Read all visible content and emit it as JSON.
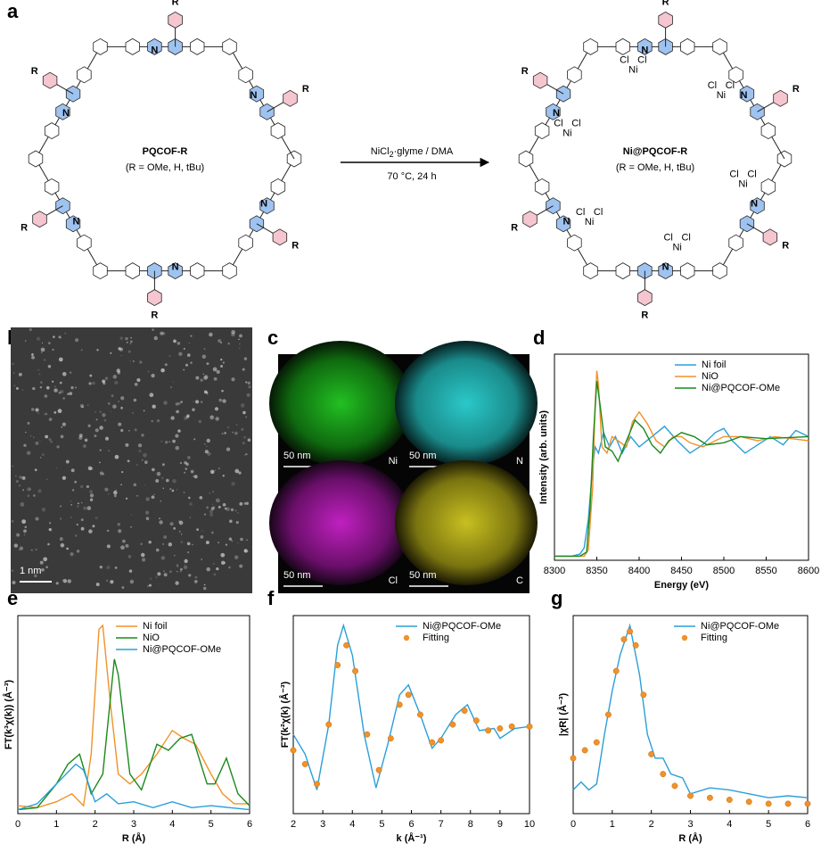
{
  "panel_labels": [
    "a",
    "b",
    "c",
    "d",
    "e",
    "f",
    "g"
  ],
  "scheme": {
    "left": {
      "name": "PQCOF-R",
      "subtitle": "(R = OMe, H, tBu)",
      "r_labels": [
        "R",
        "R",
        "R",
        "R",
        "R",
        "R"
      ],
      "n_labels": [
        "N",
        "N",
        "N",
        "N",
        "N",
        "N"
      ]
    },
    "arrow": {
      "reagent_main": "NiCl",
      "reagent_sub": "2",
      "reagent_rest": "·glyme / DMA",
      "conditions": "70 °C, 24 h"
    },
    "right": {
      "name": "Ni@PQCOF-R",
      "subtitle": "(R = OMe, H, tBu)",
      "r_labels": [
        "R",
        "R",
        "R",
        "R",
        "R",
        "R"
      ],
      "n_labels": [
        "N",
        "N",
        "N",
        "N",
        "N",
        "N"
      ],
      "ni_sites": [
        {
          "ni": "Ni",
          "cl": [
            "Cl",
            "Cl"
          ]
        },
        {
          "ni": "Ni",
          "cl": [
            "Cl",
            "Cl"
          ]
        },
        {
          "ni": "Ni",
          "cl": [
            "Cl",
            "Cl"
          ]
        },
        {
          "ni": "Ni",
          "cl": [
            "Cl",
            "Cl"
          ]
        },
        {
          "ni": "Ni",
          "cl": [
            "Cl",
            "Cl"
          ]
        },
        {
          "ni": "Ni",
          "cl": [
            "Cl",
            "Cl"
          ]
        }
      ]
    }
  },
  "images": {
    "b": {
      "scale": "1 nm"
    },
    "c": [
      {
        "element": "Ni",
        "scale": "50 nm"
      },
      {
        "element": "N",
        "scale": "50 nm"
      },
      {
        "element": "Cl",
        "scale": "50 nm"
      },
      {
        "element": "C",
        "scale": "50 nm"
      }
    ]
  },
  "chart_data": [
    {
      "type": "line",
      "xlabel": "Energy (eV)",
      "ylabel": "Intensity (arb. units)",
      "xlim": [
        8300,
        8600
      ],
      "xticks": [
        8300,
        8350,
        8400,
        8450,
        8500,
        8550,
        8600
      ],
      "ylim": [
        0,
        1
      ],
      "legend": "upper right",
      "series": [
        {
          "name": "Ni foil",
          "color": "#2a9fd8",
          "x": [
            8300,
            8320,
            8330,
            8335,
            8340,
            8345,
            8348,
            8352,
            8358,
            8365,
            8372,
            8380,
            8390,
            8400,
            8415,
            8430,
            8445,
            8460,
            8475,
            8490,
            8500,
            8510,
            8525,
            8540,
            8555,
            8570,
            8585,
            8600
          ],
          "values": [
            0.02,
            0.02,
            0.03,
            0.06,
            0.2,
            0.45,
            0.55,
            0.52,
            0.62,
            0.55,
            0.6,
            0.52,
            0.6,
            0.55,
            0.6,
            0.65,
            0.58,
            0.52,
            0.56,
            0.62,
            0.64,
            0.58,
            0.52,
            0.56,
            0.6,
            0.56,
            0.63,
            0.6
          ]
        },
        {
          "name": "NiO",
          "color": "#f0922a",
          "x": [
            8300,
            8335,
            8340,
            8345,
            8348,
            8350,
            8352,
            8356,
            8362,
            8368,
            8375,
            8385,
            8392,
            8400,
            8410,
            8420,
            8430,
            8440,
            8450,
            8460,
            8475,
            8490,
            8500,
            8520,
            8540,
            8560,
            8600
          ],
          "values": [
            0.02,
            0.02,
            0.05,
            0.35,
            0.75,
            0.92,
            0.85,
            0.55,
            0.52,
            0.6,
            0.58,
            0.55,
            0.67,
            0.72,
            0.66,
            0.58,
            0.55,
            0.6,
            0.6,
            0.57,
            0.55,
            0.58,
            0.6,
            0.6,
            0.58,
            0.6,
            0.58
          ]
        },
        {
          "name": "Ni@PQCOF-OMe",
          "color": "#1a8a1a",
          "x": [
            8300,
            8330,
            8338,
            8342,
            8346,
            8350,
            8354,
            8360,
            8368,
            8375,
            8385,
            8395,
            8405,
            8415,
            8425,
            8435,
            8450,
            8465,
            8480,
            8500,
            8520,
            8550,
            8600
          ],
          "values": [
            0.02,
            0.02,
            0.04,
            0.25,
            0.6,
            0.87,
            0.75,
            0.55,
            0.53,
            0.48,
            0.58,
            0.68,
            0.64,
            0.56,
            0.52,
            0.58,
            0.62,
            0.6,
            0.56,
            0.57,
            0.6,
            0.59,
            0.6
          ]
        }
      ]
    },
    {
      "type": "line",
      "xlabel": "R (Å)",
      "ylabel": "FT(k³χ(k)) (Å⁻³)",
      "xlim": [
        0,
        6
      ],
      "xticks": [
        0,
        1,
        2,
        3,
        4,
        5,
        6
      ],
      "ylim": [
        0,
        1
      ],
      "legend": "upper right",
      "series": [
        {
          "name": "Ni foil",
          "color": "#f0922a",
          "x": [
            0,
            0.5,
            1.0,
            1.4,
            1.7,
            1.9,
            2.1,
            2.2,
            2.4,
            2.6,
            2.9,
            3.2,
            3.6,
            4.0,
            4.3,
            4.6,
            5.0,
            5.3,
            5.6,
            6
          ],
          "values": [
            0.04,
            0.03,
            0.06,
            0.1,
            0.04,
            0.3,
            0.93,
            0.95,
            0.55,
            0.2,
            0.15,
            0.2,
            0.3,
            0.42,
            0.38,
            0.35,
            0.2,
            0.1,
            0.05,
            0.05
          ]
        },
        {
          "name": "NiO",
          "color": "#1a8a1a",
          "x": [
            0,
            0.5,
            1.0,
            1.3,
            1.6,
            1.9,
            2.2,
            2.5,
            2.6,
            2.9,
            3.2,
            3.6,
            3.9,
            4.2,
            4.5,
            4.9,
            5.1,
            5.4,
            5.7,
            6
          ],
          "values": [
            0.02,
            0.03,
            0.15,
            0.25,
            0.3,
            0.1,
            0.2,
            0.78,
            0.7,
            0.2,
            0.12,
            0.35,
            0.32,
            0.38,
            0.4,
            0.15,
            0.15,
            0.28,
            0.1,
            0.04
          ]
        },
        {
          "name": "Ni@PQCOF-OMe",
          "color": "#2a9fd8",
          "x": [
            0,
            0.5,
            1.0,
            1.5,
            1.7,
            2.0,
            2.3,
            2.6,
            3.0,
            3.5,
            4.0,
            4.5,
            5,
            6
          ],
          "values": [
            0.02,
            0.05,
            0.15,
            0.25,
            0.22,
            0.06,
            0.1,
            0.05,
            0.06,
            0.03,
            0.06,
            0.03,
            0.04,
            0.02
          ]
        }
      ]
    },
    {
      "type": "line",
      "xlabel": "k (Å⁻¹)",
      "ylabel": "FT(k²χ(k) (Å⁻³)",
      "xlim": [
        2,
        10
      ],
      "xticks": [
        2,
        3,
        4,
        5,
        6,
        7,
        8,
        9,
        10
      ],
      "ylim": [
        0,
        1
      ],
      "legend": "upper right",
      "series": [
        {
          "name": "Ni@PQCOF-OMe",
          "color": "#2a9fd8",
          "x": [
            2,
            2.4,
            2.8,
            3.2,
            3.5,
            3.7,
            4.0,
            4.4,
            4.8,
            5.2,
            5.6,
            5.9,
            6.3,
            6.7,
            7.0,
            7.5,
            7.9,
            8.3,
            8.8,
            9.0,
            9.5,
            10
          ],
          "values": [
            0.4,
            0.3,
            0.12,
            0.45,
            0.85,
            0.95,
            0.8,
            0.4,
            0.13,
            0.35,
            0.6,
            0.65,
            0.5,
            0.33,
            0.38,
            0.5,
            0.55,
            0.42,
            0.43,
            0.38,
            0.43,
            0.44
          ]
        },
        {
          "name": "Fitting",
          "color": "#f0922a",
          "marker": "circle",
          "x": [
            2,
            2.4,
            2.8,
            3.2,
            3.5,
            3.8,
            4.1,
            4.5,
            4.9,
            5.3,
            5.6,
            5.9,
            6.3,
            6.7,
            7.0,
            7.4,
            7.8,
            8.2,
            8.6,
            9.0,
            9.4,
            10
          ],
          "values": [
            0.32,
            0.25,
            0.15,
            0.45,
            0.75,
            0.85,
            0.72,
            0.4,
            0.22,
            0.38,
            0.55,
            0.6,
            0.5,
            0.36,
            0.37,
            0.45,
            0.52,
            0.47,
            0.42,
            0.43,
            0.44,
            0.44
          ]
        }
      ]
    },
    {
      "type": "line",
      "xlabel": "R (Å)",
      "ylabel": "|χR| (Å⁻³)",
      "xlim": [
        0,
        6
      ],
      "xticks": [
        0,
        1,
        2,
        3,
        4,
        5,
        6
      ],
      "ylim": [
        0,
        1
      ],
      "legend": "upper right",
      "series": [
        {
          "name": "Ni@PQCOF-OMe",
          "color": "#2a9fd8",
          "x": [
            0,
            0.2,
            0.4,
            0.6,
            0.8,
            1.0,
            1.2,
            1.45,
            1.7,
            1.9,
            2.1,
            2.3,
            2.5,
            2.8,
            3.0,
            3.5,
            4,
            4.5,
            5,
            5.5,
            6
          ],
          "values": [
            0.12,
            0.16,
            0.12,
            0.15,
            0.4,
            0.62,
            0.8,
            0.95,
            0.7,
            0.4,
            0.28,
            0.28,
            0.2,
            0.18,
            0.1,
            0.13,
            0.12,
            0.1,
            0.08,
            0.09,
            0.08
          ]
        },
        {
          "name": "Fitting",
          "color": "#f0922a",
          "marker": "circle",
          "x": [
            0,
            0.3,
            0.6,
            0.9,
            1.1,
            1.3,
            1.45,
            1.6,
            1.8,
            2.0,
            2.3,
            2.6,
            3.0,
            3.5,
            4,
            4.5,
            5,
            5.5,
            6
          ],
          "values": [
            0.28,
            0.32,
            0.36,
            0.5,
            0.72,
            0.88,
            0.92,
            0.85,
            0.6,
            0.3,
            0.2,
            0.14,
            0.09,
            0.08,
            0.07,
            0.06,
            0.05,
            0.05,
            0.05
          ]
        }
      ]
    }
  ]
}
